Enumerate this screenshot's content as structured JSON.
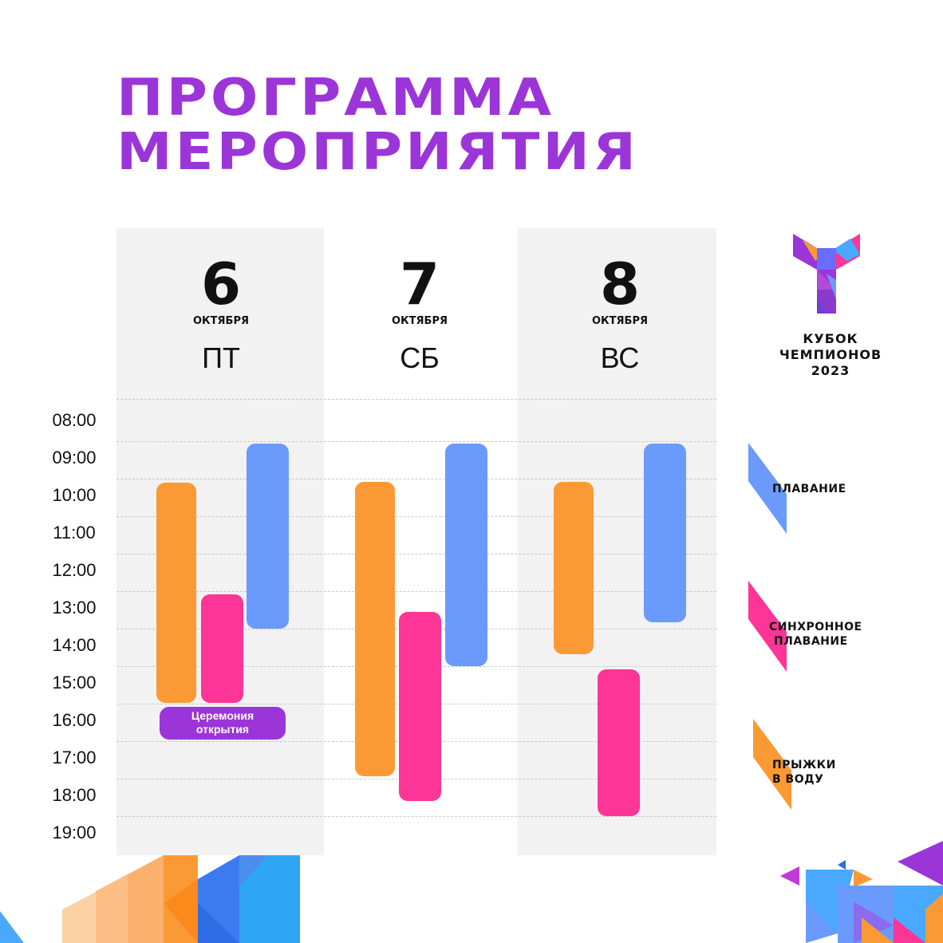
{
  "title": {
    "line1": "ПРОГРАММА",
    "line2": "МЕРОПРИЯТИЯ"
  },
  "days": [
    {
      "num": "6",
      "month": "ОКТЯБРЯ",
      "weekday": "ПТ"
    },
    {
      "num": "7",
      "month": "ОКТЯБРЯ",
      "weekday": "СБ"
    },
    {
      "num": "8",
      "month": "ОКТЯБРЯ",
      "weekday": "ВС"
    }
  ],
  "times": [
    "08:00",
    "09:00",
    "10:00",
    "11:00",
    "12:00",
    "13:00",
    "14:00",
    "15:00",
    "16:00",
    "17:00",
    "18:00",
    "19:00"
  ],
  "ceremony": {
    "line1": "Церемония",
    "line2": "открытия"
  },
  "logo": {
    "line1": "КУБОК",
    "line2": "ЧЕМПИОНОВ",
    "line3": "2023"
  },
  "legend": {
    "swimming": "ПЛАВАНИЕ",
    "synchro_line1": "СИНХРОННОЕ",
    "synchro_line2": "ПЛАВАНИЕ",
    "diving_line1": "ПРЫЖКИ",
    "diving_line2": "В ВОДУ"
  },
  "colors": {
    "title": "#9b35d8",
    "swimming": "#6a9bfc",
    "synchro": "#fc3596",
    "diving": "#fb9a34"
  }
}
